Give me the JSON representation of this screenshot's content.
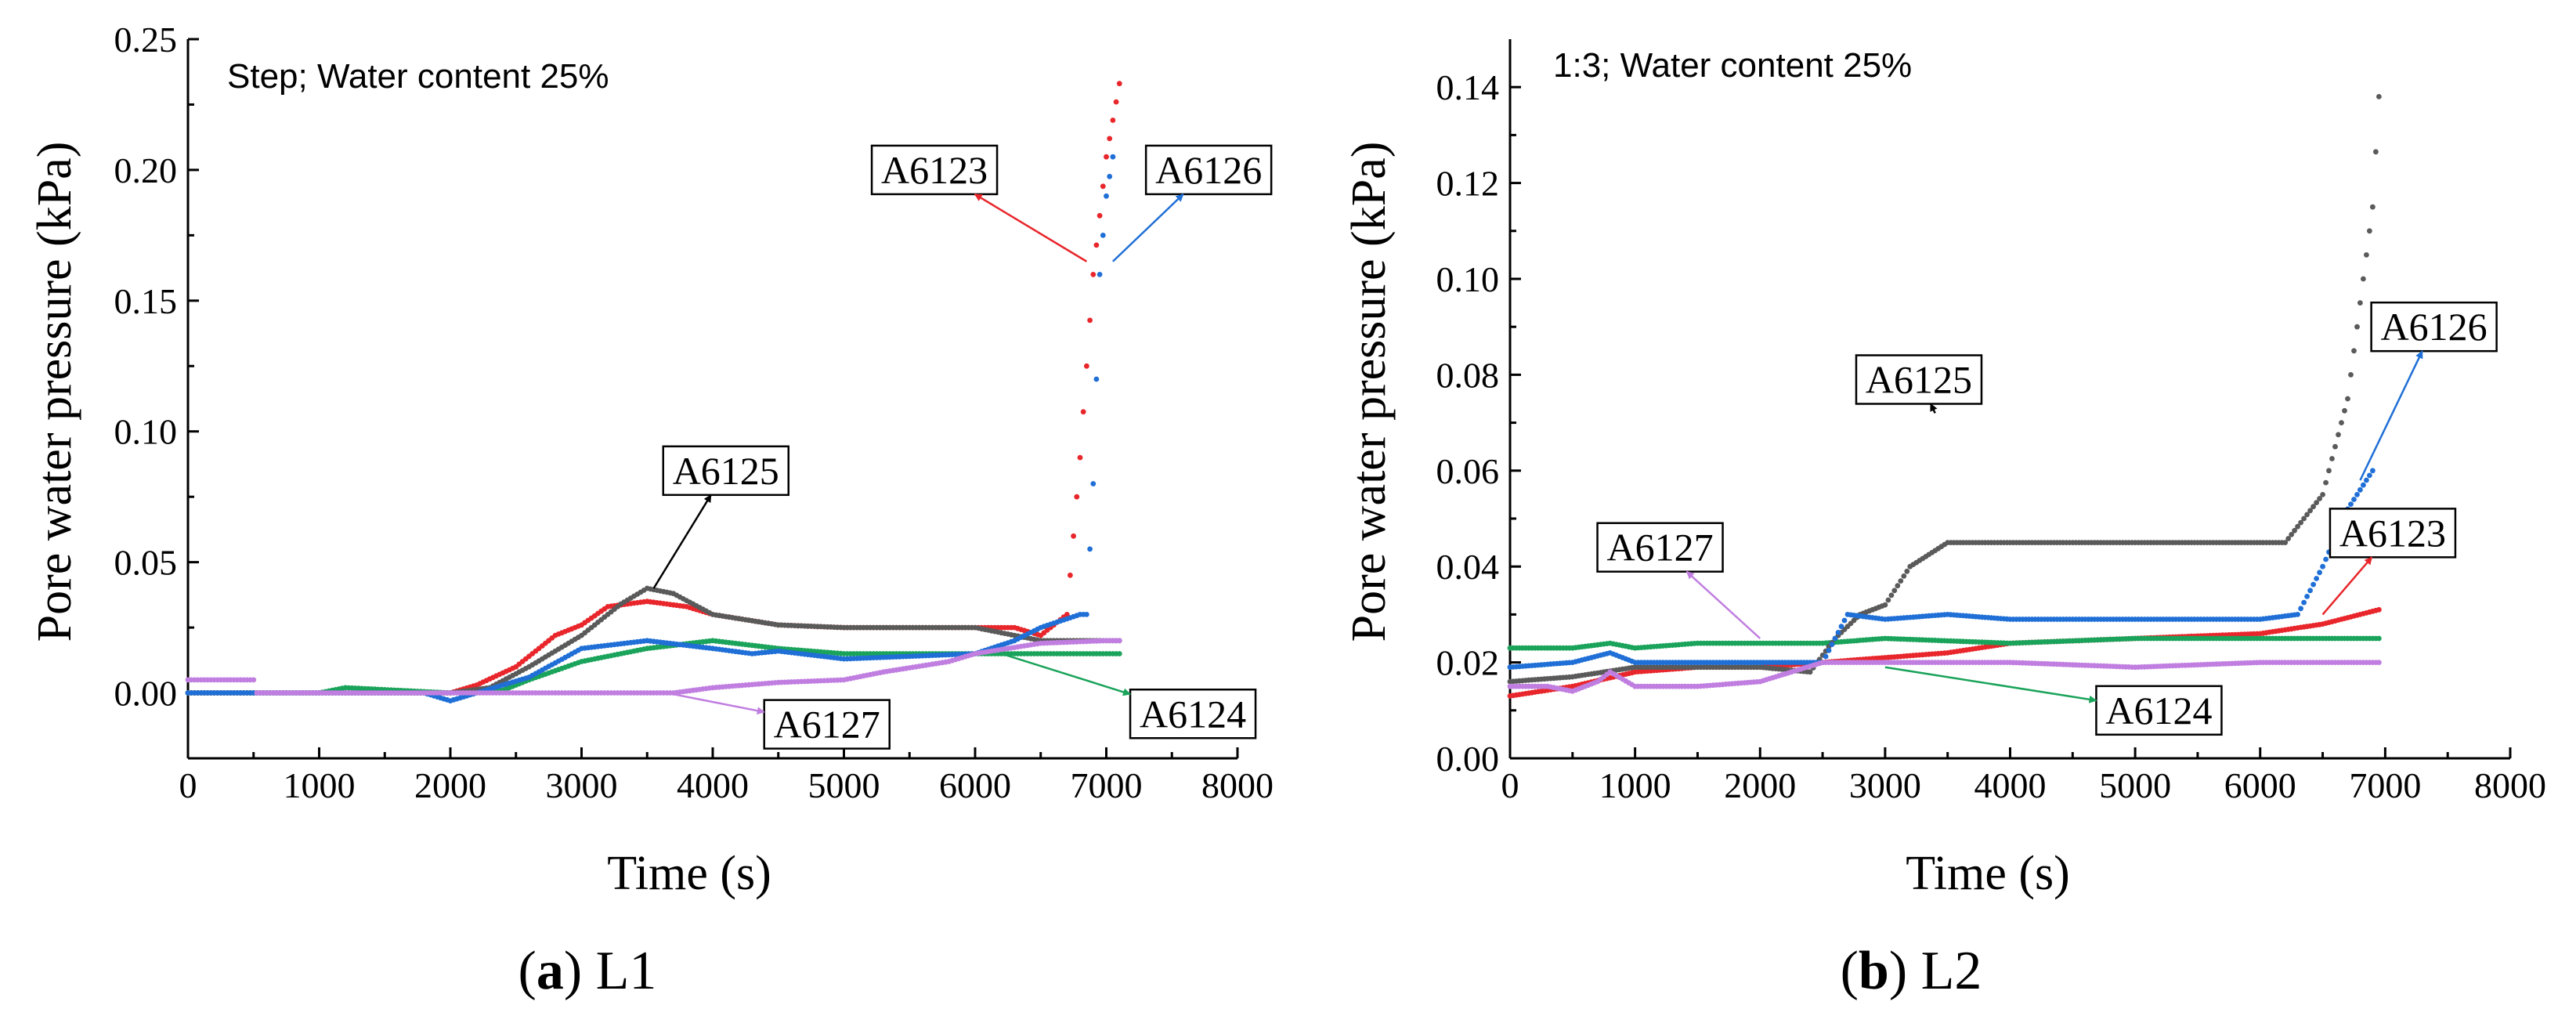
{
  "colors": {
    "A6123": "#e8262b",
    "A6124": "#1aa35a",
    "A6125": "#5a5a5a",
    "A6126": "#1f6fd6",
    "A6127": "#c07ee0"
  },
  "chart_data": [
    {
      "type": "scatter",
      "panel_letter": "a",
      "panel_name": "L1",
      "title": "Step; Water content 25%",
      "xlabel": "Time (s)",
      "ylabel": "Pore water pressure (kPa)",
      "xlim": [
        0,
        8000
      ],
      "ylim": [
        -0.025,
        0.25
      ],
      "xticks": [
        0,
        1000,
        2000,
        3000,
        4000,
        5000,
        6000,
        7000,
        8000
      ],
      "xtick_labels": [
        "0",
        "1000",
        "2000",
        "3000",
        "4000",
        "5000",
        "6000",
        "7000",
        "8000"
      ],
      "yticks": [
        0.0,
        0.05,
        0.1,
        0.15,
        0.2,
        0.25
      ],
      "ytick_labels": [
        "0.00",
        "0.05",
        "0.10",
        "0.15",
        "0.20",
        "0.25"
      ],
      "series": [
        {
          "name": "A6123",
          "x": [
            0,
            1000,
            2000,
            2200,
            2500,
            2800,
            3000,
            3200,
            3500,
            3800,
            4000,
            4500,
            5000,
            5500,
            6000,
            6300,
            6500,
            6700,
            6800,
            6900,
            7000,
            7100
          ],
          "y": [
            0.0,
            0.0,
            0.0,
            0.003,
            0.01,
            0.022,
            0.026,
            0.033,
            0.035,
            0.033,
            0.03,
            0.026,
            0.025,
            0.025,
            0.025,
            0.025,
            0.022,
            0.03,
            0.09,
            0.16,
            0.205,
            0.233
          ]
        },
        {
          "name": "A6124",
          "x": [
            0,
            500,
            1000,
            1200,
            2000,
            2400,
            2600,
            3000,
            3500,
            4000,
            4500,
            5000,
            6000,
            6500,
            7000,
            7100
          ],
          "y": [
            0.0,
            0.0,
            0.0,
            0.002,
            0.0,
            0.001,
            0.005,
            0.012,
            0.017,
            0.02,
            0.017,
            0.015,
            0.015,
            0.015,
            0.015,
            0.015
          ]
        },
        {
          "name": "A6125",
          "x": [
            0,
            500,
            1000,
            1500,
            2000,
            2300,
            2600,
            3000,
            3300,
            3500,
            3700,
            4000,
            4500,
            5000,
            6000,
            6500,
            7000,
            7100
          ],
          "y": [
            0.0,
            0.0,
            0.0,
            0.0,
            0.0,
            0.002,
            0.01,
            0.022,
            0.034,
            0.04,
            0.038,
            0.03,
            0.026,
            0.025,
            0.025,
            0.02,
            0.02,
            0.02
          ]
        },
        {
          "name": "A6126",
          "x": [
            0,
            1000,
            1800,
            2000,
            2200,
            2600,
            3000,
            3500,
            4000,
            4300,
            4500,
            5000,
            6000,
            6300,
            6500,
            6800,
            6850,
            6900,
            6950,
            7000,
            7050
          ],
          "y": [
            0.0,
            0.0,
            0.0,
            -0.003,
            0.0,
            0.006,
            0.017,
            0.02,
            0.017,
            0.015,
            0.016,
            0.013,
            0.015,
            0.02,
            0.025,
            0.03,
            0.03,
            0.08,
            0.16,
            0.19,
            0.205
          ]
        },
        {
          "name": "A6127",
          "x": [
            0,
            300,
            500,
            520,
            800,
            1000,
            2000,
            3000,
            3700,
            4000,
            4500,
            5000,
            5300,
            5800,
            6000,
            6500,
            7000,
            7100
          ],
          "y": [
            0.005,
            0.005,
            0.005,
            0.0,
            0.0,
            0.0,
            0.0,
            0.0,
            0.0,
            0.002,
            0.004,
            0.005,
            0.008,
            0.012,
            0.015,
            0.019,
            0.02,
            0.02
          ]
        }
      ],
      "annotations": [
        {
          "text": "A6123",
          "series": "A6123",
          "x": 5690,
          "y": 0.2,
          "ax": 6850,
          "ay": 0.165
        },
        {
          "text": "A6126",
          "series": "A6126",
          "x": 7780,
          "y": 0.2,
          "ax": 7050,
          "ay": 0.165
        },
        {
          "text": "A6125",
          "series": "A6125",
          "x": 4100,
          "y": 0.085,
          "ax": 3550,
          "ay": 0.04
        },
        {
          "text": "A6127",
          "series": "A6127",
          "x": 4870,
          "y": -0.012,
          "ax": 3650,
          "ay": 0.0
        },
        {
          "text": "A6124",
          "series": "A6124",
          "x": 7660,
          "y": -0.008,
          "ax": 6200,
          "ay": 0.015
        }
      ]
    },
    {
      "type": "scatter",
      "panel_letter": "b",
      "panel_name": "L2",
      "title": "1:3; Water content 25%",
      "xlabel": "Time (s)",
      "ylabel": "Pore water pressure (kPa)",
      "xlim": [
        0,
        8000
      ],
      "ylim": [
        0,
        0.15
      ],
      "xticks": [
        0,
        1000,
        2000,
        3000,
        4000,
        5000,
        6000,
        7000,
        8000
      ],
      "xtick_labels": [
        "0",
        "1000",
        "2000",
        "3000",
        "4000",
        "5000",
        "6000",
        "7000",
        "8000"
      ],
      "yticks": [
        0.0,
        0.02,
        0.04,
        0.06,
        0.08,
        0.1,
        0.12,
        0.14
      ],
      "ytick_labels": [
        "0.00",
        "0.02",
        "0.04",
        "0.06",
        "0.08",
        "0.10",
        "0.12",
        "0.14"
      ],
      "series": [
        {
          "name": "A6123",
          "x": [
            0,
            500,
            1000,
            1500,
            2000,
            2500,
            3000,
            3500,
            4000,
            5000,
            6000,
            6500,
            6800,
            6950
          ],
          "y": [
            0.013,
            0.015,
            0.018,
            0.019,
            0.019,
            0.02,
            0.021,
            0.022,
            0.024,
            0.025,
            0.026,
            0.028,
            0.03,
            0.031
          ]
        },
        {
          "name": "A6124",
          "x": [
            0,
            500,
            800,
            1000,
            1500,
            2000,
            2300,
            2500,
            3000,
            4000,
            5000,
            6000,
            6950
          ],
          "y": [
            0.023,
            0.023,
            0.024,
            0.023,
            0.024,
            0.024,
            0.024,
            0.024,
            0.025,
            0.024,
            0.025,
            0.025,
            0.025
          ]
        },
        {
          "name": "A6125",
          "x": [
            0,
            500,
            1000,
            1500,
            2000,
            2400,
            2600,
            2800,
            3000,
            3200,
            3500,
            4000,
            5000,
            6000,
            6200,
            6500,
            6700,
            6900,
            6950
          ],
          "y": [
            0.016,
            0.017,
            0.019,
            0.019,
            0.019,
            0.018,
            0.025,
            0.03,
            0.032,
            0.04,
            0.045,
            0.045,
            0.045,
            0.045,
            0.045,
            0.055,
            0.075,
            0.115,
            0.138
          ]
        },
        {
          "name": "A6126",
          "x": [
            0,
            500,
            800,
            1000,
            1500,
            2000,
            2500,
            2700,
            3000,
            3500,
            4000,
            5000,
            6000,
            6300,
            6500,
            6700,
            6900
          ],
          "y": [
            0.019,
            0.02,
            0.022,
            0.02,
            0.02,
            0.02,
            0.02,
            0.03,
            0.029,
            0.03,
            0.029,
            0.029,
            0.029,
            0.03,
            0.04,
            0.052,
            0.06
          ]
        },
        {
          "name": "A6127",
          "x": [
            0,
            300,
            500,
            700,
            800,
            1000,
            1500,
            2000,
            2500,
            3000,
            4000,
            5000,
            6000,
            6950
          ],
          "y": [
            0.015,
            0.015,
            0.014,
            0.016,
            0.018,
            0.015,
            0.015,
            0.016,
            0.02,
            0.02,
            0.02,
            0.019,
            0.02,
            0.02
          ]
        }
      ],
      "annotations": [
        {
          "text": "A6125",
          "series": "A6125",
          "x": 3270,
          "y": 0.079,
          "ax": 3400,
          "ay": 0.072
        },
        {
          "text": "A6126",
          "series": "A6126",
          "x": 7390,
          "y": 0.09,
          "ax": 6800,
          "ay": 0.058
        },
        {
          "text": "A6127",
          "series": "A6127",
          "x": 1200,
          "y": 0.044,
          "ax": 2000,
          "ay": 0.025
        },
        {
          "text": "A6123",
          "series": "A6123",
          "x": 7060,
          "y": 0.047,
          "ax": 6500,
          "ay": 0.03
        },
        {
          "text": "A6124",
          "series": "A6124",
          "x": 5190,
          "y": 0.01,
          "ax": 3000,
          "ay": 0.019
        }
      ]
    }
  ]
}
